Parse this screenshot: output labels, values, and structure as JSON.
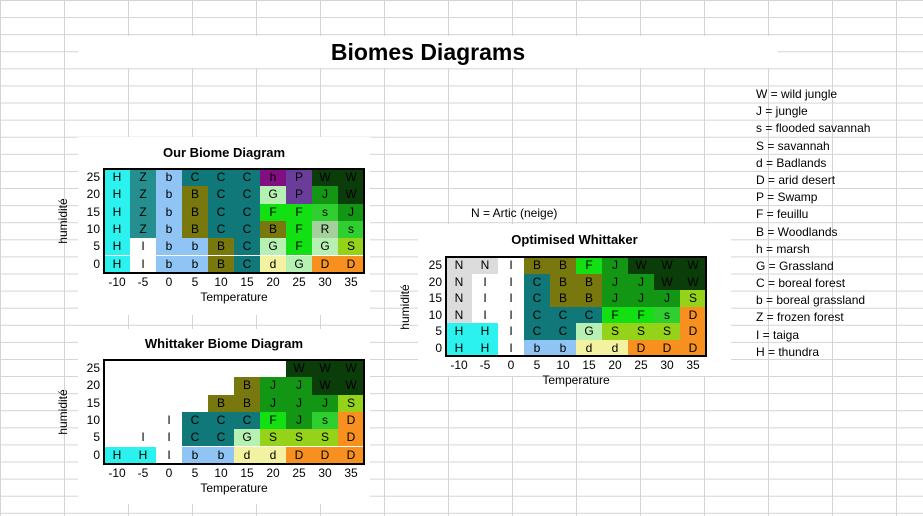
{
  "page_title": "Biomes Diagrams",
  "note": "N = Artic (neige)",
  "legend": [
    "W = wild jungle",
    "J = jungle",
    "s = flooded savannah",
    "S = savannah",
    "d = Badlands",
    "D = arid desert",
    "P = Swamp",
    "F = feuillu",
    "B = Woodlands",
    "h = marsh",
    "G = Grassland",
    "C = boreal forest",
    "b = boreal grassland",
    "Z = frozen forest",
    "I = taiga",
    "H = thundra"
  ],
  "colors": {
    "H": "#2cf2ef",
    "Z": "#258f8f",
    "b": "#8fc4f4",
    "C": "#107878",
    "I": "#ffffff",
    "G": "#b6f0b2",
    "F": "#12e012",
    "s": "#2fcf2f",
    "S": "#94d31a",
    "J": "#139613",
    "W": "#0b3d0b",
    "R": "#a6cf9e",
    "P": "#6b3d9b",
    "h": "#820f82",
    "B": "#78780e",
    "d": "#f2f2a0",
    "D": "#f7901e",
    "N": "#dcdcdc"
  },
  "chart_data": [
    {
      "type": "heatmap",
      "title": "Our Biome Diagram",
      "xlabel": "Temperature",
      "ylabel": "humidité",
      "x_ticks": [
        "-10",
        "-5",
        "0",
        "5",
        "10",
        "15",
        "20",
        "25",
        "30",
        "35"
      ],
      "y_ticks": [
        "25",
        "20",
        "15",
        "10",
        "5",
        "0"
      ],
      "rows": [
        [
          "H",
          "Z",
          "b",
          "C",
          "C",
          "C",
          "h",
          "P",
          "W",
          "W"
        ],
        [
          "H",
          "Z",
          "b",
          "B",
          "C",
          "C",
          "G",
          "P",
          "J",
          "W"
        ],
        [
          "H",
          "Z",
          "b",
          "B",
          "C",
          "C",
          "F",
          "F",
          "s",
          "J"
        ],
        [
          "H",
          "Z",
          "b",
          "B",
          "C",
          "C",
          "B",
          "F",
          "R",
          "s"
        ],
        [
          "H",
          "I",
          "b",
          "b",
          "B",
          "C",
          "G",
          "F",
          "G",
          "S"
        ],
        [
          "H",
          "I",
          "b",
          "b",
          "B",
          "C",
          "d",
          "G",
          "D",
          "D"
        ]
      ]
    },
    {
      "type": "heatmap",
      "title": "Whittaker Biome Diagram",
      "xlabel": "Temperature",
      "ylabel": "humidité",
      "x_ticks": [
        "-10",
        "-5",
        "0",
        "5",
        "10",
        "15",
        "20",
        "25",
        "30",
        "35"
      ],
      "y_ticks": [
        "25",
        "20",
        "15",
        "10",
        "5",
        "0"
      ],
      "rows": [
        [
          "",
          "",
          "",
          "",
          "",
          "",
          "",
          "W",
          "W",
          "W"
        ],
        [
          "",
          "",
          "",
          "",
          "",
          "B",
          "J",
          "J",
          "W",
          "W"
        ],
        [
          "",
          "",
          "",
          "",
          "B",
          "B",
          "J",
          "J",
          "J",
          "S"
        ],
        [
          "",
          "",
          "I",
          "C",
          "C",
          "C",
          "F",
          "J",
          "s",
          "D"
        ],
        [
          "",
          "I",
          "I",
          "C",
          "C",
          "G",
          "S",
          "S",
          "S",
          "D"
        ],
        [
          "H",
          "H",
          "I",
          "b",
          "b",
          "d",
          "d",
          "D",
          "D",
          "D"
        ]
      ]
    },
    {
      "type": "heatmap",
      "title": "Optimised Whittaker",
      "xlabel": "Temperature",
      "ylabel": "humidité",
      "x_ticks": [
        "-10",
        "-5",
        "0",
        "5",
        "10",
        "15",
        "20",
        "25",
        "30",
        "35"
      ],
      "y_ticks": [
        "25",
        "20",
        "15",
        "10",
        "5",
        "0"
      ],
      "rows": [
        [
          "N",
          "N",
          "I",
          "B",
          "B",
          "F",
          "J",
          "W",
          "W",
          "W"
        ],
        [
          "N",
          "I",
          "I",
          "C",
          "B",
          "B",
          "J",
          "J",
          "W",
          "W"
        ],
        [
          "N",
          "I",
          "I",
          "C",
          "B",
          "B",
          "J",
          "J",
          "J",
          "S"
        ],
        [
          "N",
          "I",
          "I",
          "C",
          "C",
          "C",
          "F",
          "F",
          "s",
          "D"
        ],
        [
          "H",
          "H",
          "I",
          "C",
          "C",
          "G",
          "S",
          "S",
          "S",
          "D"
        ],
        [
          "H",
          "H",
          "I",
          "b",
          "b",
          "d",
          "d",
          "D",
          "D",
          "D"
        ]
      ]
    }
  ]
}
